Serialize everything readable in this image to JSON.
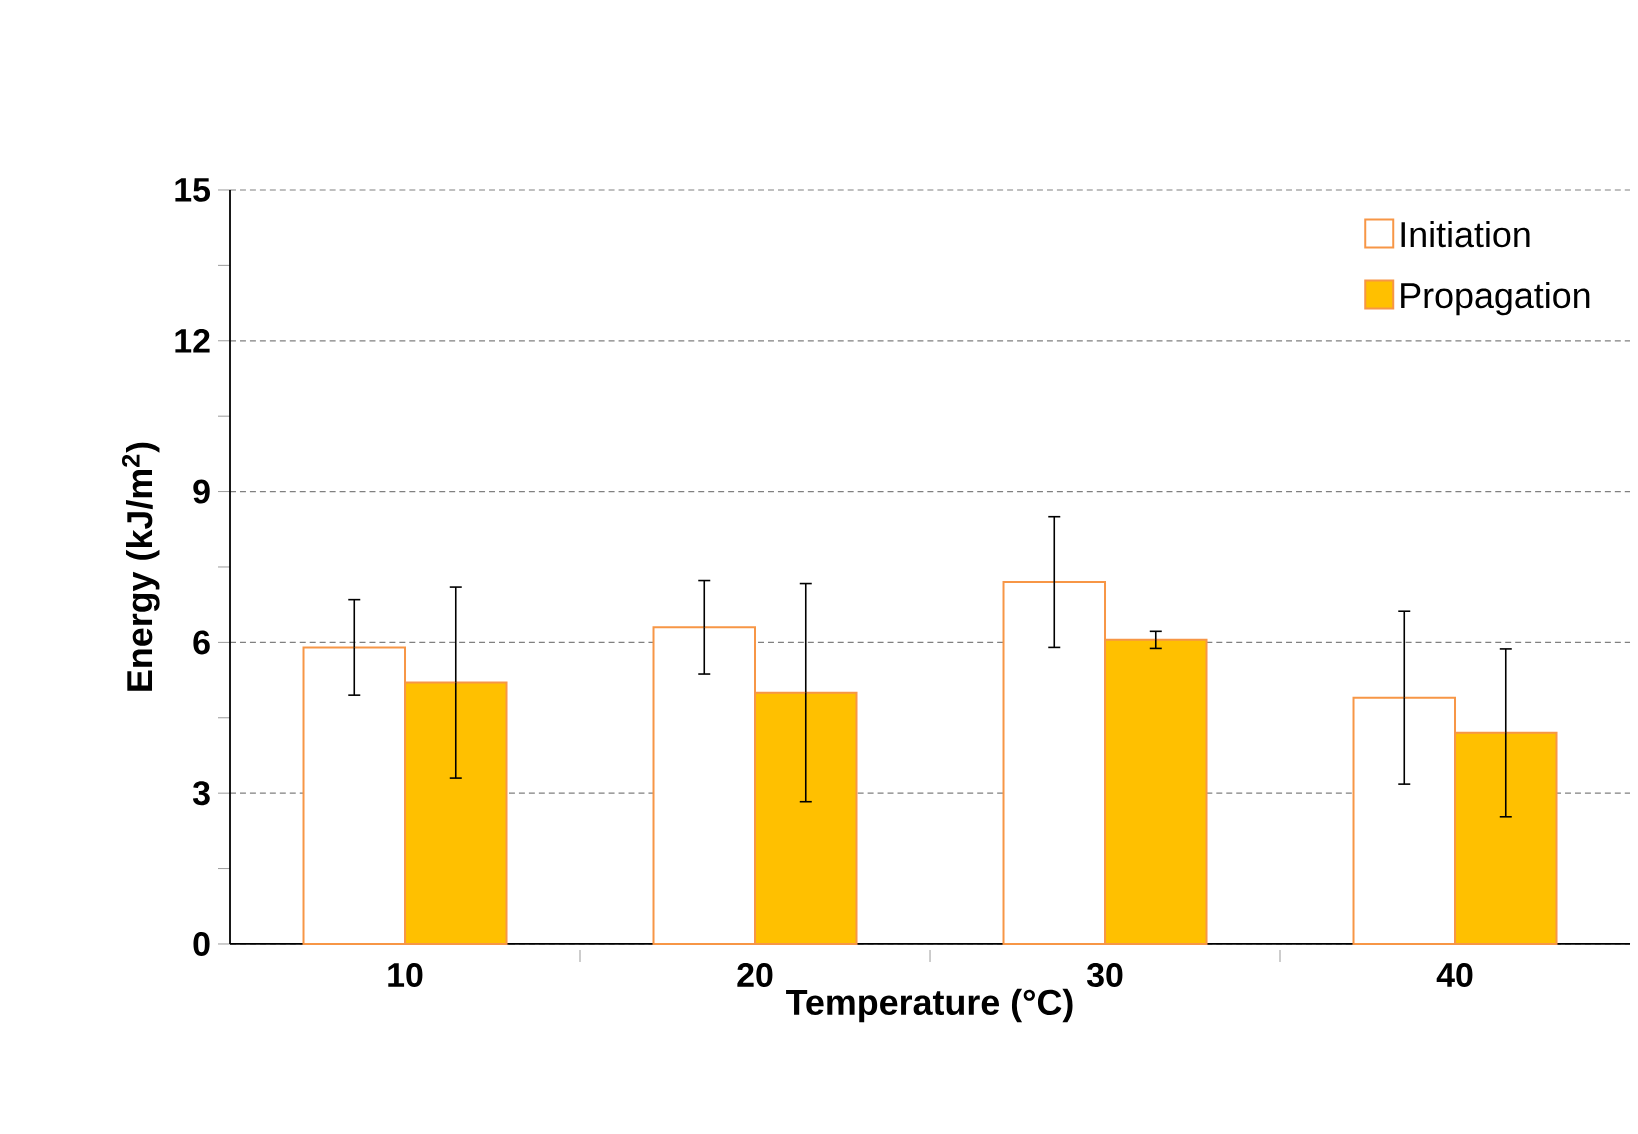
{
  "chart_data": {
    "type": "bar",
    "xlabel": "Temperature (°C)",
    "ylabel": "Energy (kJ/m$^{2}$)",
    "categories": [
      "10",
      "20",
      "30",
      "40"
    ],
    "series": [
      {
        "name": "Initiation",
        "color": "#ffffff",
        "values": [
          5.9,
          6.3,
          7.2,
          4.9
        ],
        "errors": [
          0.95,
          0.93,
          1.3,
          1.72
        ]
      },
      {
        "name": "Propagation",
        "color": "#ffc000",
        "values": [
          5.2,
          5.0,
          6.05,
          4.2
        ],
        "errors": [
          1.9,
          2.17,
          0.17,
          1.67
        ]
      }
    ],
    "ylim": [
      0,
      15
    ],
    "yticks": [
      0,
      3,
      6,
      9,
      12,
      15
    ],
    "grid": "y",
    "legend": "top right"
  }
}
